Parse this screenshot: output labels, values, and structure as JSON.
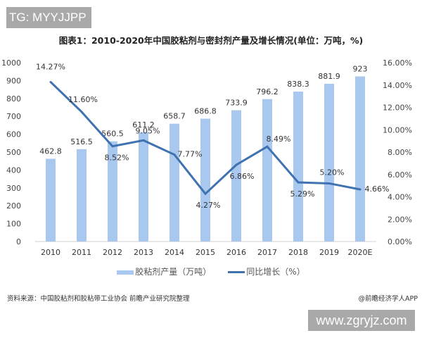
{
  "watermark_top": "TG: MYYJJPP",
  "watermark_bottom": "www.zgryjz.com",
  "source": "资料来源：中国胶粘剂和胶粘带工业协会 前瞻产业研究院整理",
  "credit": "@前瞻经济学人APP",
  "chart_data": {
    "type": "bar+line",
    "title": "图表1：2010-2020年中国胶粘剂与密封剂产量及增长情况(单位：万吨，%)",
    "categories": [
      "2010",
      "2011",
      "2012",
      "2013",
      "2014",
      "2015",
      "2016",
      "2017",
      "2018",
      "2019",
      "2020E"
    ],
    "series": [
      {
        "name": "胶粘剂产量（万吨）",
        "type": "bar",
        "axis": "left",
        "color": "#a9c8f0",
        "values": [
          462.8,
          516.5,
          560.5,
          611.2,
          658.7,
          686.8,
          733.9,
          796.2,
          838.3,
          881.9,
          923
        ],
        "labels": [
          "462.8",
          "516.5",
          "560.5",
          "611.2",
          "658.7",
          "686.8",
          "733.9",
          "796.2",
          "838.3",
          "881.9",
          "923"
        ]
      },
      {
        "name": "同比增长（%）",
        "type": "line",
        "axis": "right",
        "color": "#3f72b0",
        "values": [
          14.27,
          11.6,
          8.52,
          9.05,
          7.77,
          4.27,
          6.86,
          8.49,
          5.29,
          5.2,
          4.66
        ],
        "labels": [
          "14.27%",
          "11.60%",
          "8.52%",
          "9.05%",
          "7.77%",
          "4.27%",
          "6.86%",
          "8.49%",
          "5.29%",
          "5.20%",
          "4.66%"
        ]
      }
    ],
    "left_axis": {
      "range": [
        0,
        1000
      ],
      "ticks": [
        "0",
        "100",
        "200",
        "300",
        "400",
        "500",
        "600",
        "700",
        "800",
        "900",
        "1000"
      ]
    },
    "right_axis": {
      "range": [
        0,
        16
      ],
      "ticks": [
        "0.00%",
        "2.00%",
        "4.00%",
        "6.00%",
        "8.00%",
        "10.00%",
        "12.00%",
        "14.00%",
        "16.00%"
      ]
    },
    "grid": false,
    "legend": "bottom"
  }
}
